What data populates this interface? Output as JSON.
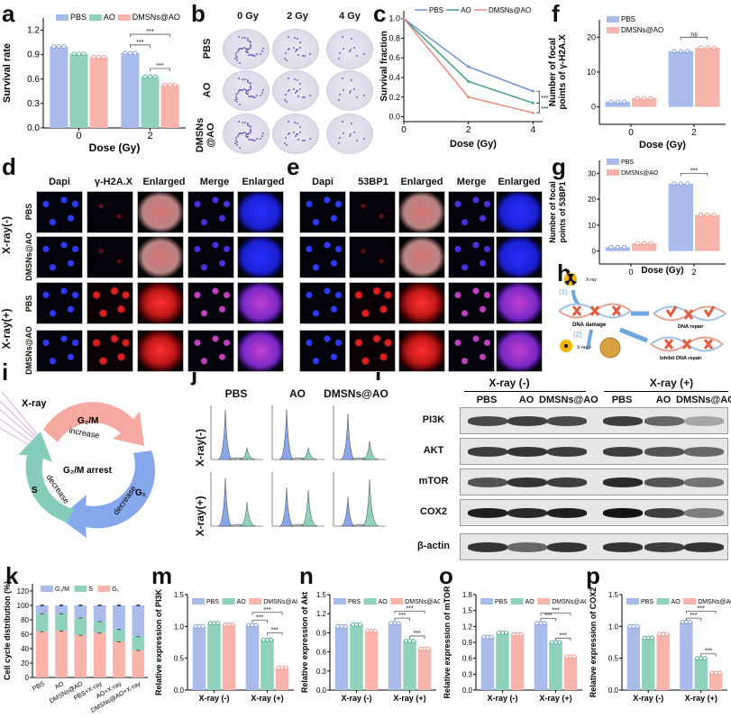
{
  "panel_labels": {
    "a": "a",
    "b": "b",
    "c": "c",
    "d": "d",
    "e": "e",
    "f": "f",
    "g": "g",
    "h": "h",
    "i": "i",
    "j": "j",
    "k": "k",
    "l": "l",
    "m": "m",
    "n": "n",
    "o": "o",
    "p": "p"
  },
  "colors": {
    "PBS": "#a9bbea",
    "AO": "#8fd1bd",
    "DMSNs@AO": "#f8b3aa",
    "PBS_line": "#7090d8",
    "AO_line": "#3aa383",
    "DMSNs_line": "#ef8a7c"
  },
  "panel_b": {
    "columns": [
      "0 Gy",
      "2 Gy",
      "4 Gy"
    ],
    "rows": [
      "PBS",
      "AO",
      "DMSNs\n@AO"
    ]
  },
  "panel_d": {
    "columns": [
      "Dapi",
      "γ-H2A.X",
      "Enlarged",
      "Merge",
      "Enlarged"
    ],
    "rows": [
      "PBS",
      "DMSNs@AO",
      "PBS",
      "DMSNs@AO"
    ],
    "groups": [
      "X-ray(-)",
      "X-ray(+)"
    ]
  },
  "panel_e": {
    "columns": [
      "Dapi",
      "53BP1",
      "Enlarged",
      "Merge",
      "Enlarged"
    ]
  },
  "panel_h": {
    "xray1": "X-ray",
    "step1": "(1)",
    "damage": "DNA damage",
    "step2": "(2)",
    "xray2": "X-ray +",
    "repair": "DNA repair",
    "inhibit": "Inhibit DNA repair"
  },
  "panel_i": {
    "xray": "X-ray",
    "g2m": "G₂/M",
    "increase": "increase",
    "arrest": "G₂/M arrest",
    "s": "S",
    "decrease_s": "decrease",
    "decrease_g1": "decrease",
    "g1": "G₁"
  },
  "panel_j": {
    "columns": [
      "PBS",
      "AO",
      "DMSNs@AO"
    ],
    "rows": [
      "X-ray(-)",
      "X-ray(+)"
    ]
  },
  "panel_l": {
    "groups": [
      "X-ray (-)",
      "X-ray (+)"
    ],
    "lanes": [
      "PBS",
      "AO",
      "DMSNs@AO",
      "PBS",
      "AO",
      "DMSNs@AO"
    ],
    "blots": [
      {
        "name": "PI3K",
        "bands": [
          0.75,
          0.8,
          0.75,
          0.8,
          0.6,
          0.3
        ]
      },
      {
        "name": "AKT",
        "bands": [
          0.8,
          0.85,
          0.8,
          0.8,
          0.7,
          0.6
        ]
      },
      {
        "name": "mTOR",
        "bands": [
          0.7,
          0.85,
          0.8,
          0.9,
          0.7,
          0.55
        ]
      },
      {
        "name": "COX2",
        "bands": [
          0.95,
          0.9,
          0.95,
          1.0,
          0.8,
          0.5
        ]
      },
      {
        "name": "β-actin",
        "bands": [
          0.85,
          0.6,
          0.85,
          0.85,
          0.8,
          0.85
        ]
      }
    ]
  },
  "chart_data": [
    {
      "id": "a",
      "type": "bar",
      "title": "",
      "xlabel": "Dose (Gy)",
      "ylabel": [
        "Survival rate"
      ],
      "categories": [
        "0",
        "2"
      ],
      "ylim": [
        0,
        1.35
      ],
      "yticks": [
        0,
        0.3,
        0.6,
        0.9,
        1.2
      ],
      "tick_decimals": 1,
      "series": [
        {
          "name": "PBS",
          "values": [
            1.0,
            0.92
          ]
        },
        {
          "name": "AO",
          "values": [
            0.91,
            0.63
          ]
        },
        {
          "name": "DMSNs@AO",
          "values": [
            0.87,
            0.53
          ]
        }
      ],
      "significance": [
        {
          "group": 1,
          "from": 0,
          "to": 1,
          "y": 1.02,
          "label": "***"
        },
        {
          "group": 1,
          "from": 0,
          "to": 2,
          "y": 1.15,
          "label": "***"
        },
        {
          "group": 1,
          "from": 1,
          "to": 2,
          "y": 0.73,
          "label": "***"
        }
      ]
    },
    {
      "id": "c",
      "type": "line",
      "xlabel": "Dose (Gy)",
      "ylabel": [
        "Survival fraction"
      ],
      "x": [
        0,
        2,
        4
      ],
      "xlim": [
        0,
        4.3
      ],
      "xticks": [
        0,
        2,
        4
      ],
      "ylim": [
        -0.05,
        1.08
      ],
      "yticks": [
        0,
        0.2,
        0.4,
        0.6,
        0.8,
        1.0
      ],
      "tick_decimals": 1,
      "series": [
        {
          "name": "PBS",
          "values": [
            1.0,
            0.51,
            0.26
          ]
        },
        {
          "name": "AO",
          "values": [
            1.0,
            0.36,
            0.14
          ]
        },
        {
          "name": "DMSNs@AO",
          "values": [
            1.0,
            0.2,
            0.04
          ]
        }
      ],
      "significance": [
        {
          "from": 0,
          "to": 1,
          "label": "***"
        },
        {
          "from": 1,
          "to": 2,
          "label": "***"
        }
      ]
    },
    {
      "id": "f",
      "type": "bar",
      "xlabel": "Dose (Gy)",
      "ylabel": [
        "Number of focal",
        "points of γ-H2A.X"
      ],
      "categories": [
        "0",
        "2"
      ],
      "ylim": [
        -5,
        25
      ],
      "yticks": [
        0,
        10,
        20
      ],
      "tick_decimals": 0,
      "series": [
        {
          "name": "PBS",
          "values": [
            1.5,
            16
          ]
        },
        {
          "name": "DMSNs@AO",
          "values": [
            2.5,
            17
          ]
        }
      ],
      "significance": [
        {
          "group": 1,
          "from": 0,
          "to": 1,
          "y": 20,
          "label": "ns"
        }
      ]
    },
    {
      "id": "g",
      "type": "bar",
      "xlabel": "Dose (Gy)",
      "ylabel": [
        "Number of focal",
        "points of 53BP1"
      ],
      "categories": [
        "0",
        "2"
      ],
      "ylim": [
        -5,
        35
      ],
      "yticks": [
        0,
        10,
        20,
        30
      ],
      "tick_decimals": 0,
      "series": [
        {
          "name": "PBS",
          "values": [
            1.5,
            26
          ]
        },
        {
          "name": "DMSNs@AO",
          "values": [
            3,
            14
          ]
        }
      ],
      "significance": [
        {
          "group": 1,
          "from": 0,
          "to": 1,
          "y": 30,
          "label": "***"
        }
      ]
    },
    {
      "id": "k",
      "type": "stacked-bar",
      "xlabel": "",
      "ylabel": [
        "Cell cycle distribution (%)"
      ],
      "categories": [
        "PBS",
        "AO",
        "DMSNs@AO",
        "PBS+X-ray",
        "AO+X-ray",
        "DMSNs@AO+X-ray"
      ],
      "ylim": [
        0,
        130
      ],
      "yticks": [
        0,
        20,
        40,
        60,
        80,
        100,
        120
      ],
      "tick_decimals": 0,
      "series": [
        {
          "name": "G₁",
          "values": [
            64,
            65,
            59,
            62,
            50,
            38
          ],
          "color": "#f8b3aa"
        },
        {
          "name": "S",
          "values": [
            25,
            24,
            24,
            16,
            17,
            19
          ],
          "color": "#8fd1bd"
        },
        {
          "name": "G₂/M",
          "values": [
            11,
            11,
            17,
            22,
            33,
            43
          ],
          "color": "#a9bbea"
        }
      ],
      "legend_order": [
        2,
        1,
        0
      ]
    },
    {
      "id": "m",
      "type": "bar",
      "xlabel": "",
      "ylabel": [
        "Relative expression of PI3K"
      ],
      "categories": [
        "X-ray (-)",
        "X-ray (+)"
      ],
      "ylim": [
        0,
        1.5
      ],
      "yticks": [
        0,
        0.5,
        1.0,
        1.5
      ],
      "tick_decimals": 1,
      "series": [
        {
          "name": "PBS",
          "values": [
            1.0,
            1.02
          ]
        },
        {
          "name": "AO",
          "values": [
            1.05,
            0.79
          ]
        },
        {
          "name": "DMSNs@AO",
          "values": [
            1.03,
            0.35
          ]
        }
      ],
      "significance": [
        {
          "group": 1,
          "from": 0,
          "to": 1,
          "y": 1.1,
          "label": "***"
        },
        {
          "group": 1,
          "from": 0,
          "to": 2,
          "y": 1.22,
          "label": "***"
        },
        {
          "group": 1,
          "from": 1,
          "to": 2,
          "y": 0.9,
          "label": "***"
        }
      ]
    },
    {
      "id": "n",
      "type": "bar",
      "xlabel": "",
      "ylabel": [
        "Relative expression of Akt"
      ],
      "categories": [
        "X-ray (-)",
        "X-ray (+)"
      ],
      "ylim": [
        0,
        1.5
      ],
      "yticks": [
        0,
        0.3,
        0.6,
        0.9,
        1.2,
        1.5
      ],
      "tick_decimals": 1,
      "series": [
        {
          "name": "PBS",
          "values": [
            1.0,
            1.05
          ]
        },
        {
          "name": "AO",
          "values": [
            1.03,
            0.77
          ]
        },
        {
          "name": "DMSNs@AO",
          "values": [
            0.93,
            0.65
          ]
        }
      ],
      "significance": [
        {
          "group": 1,
          "from": 0,
          "to": 1,
          "y": 1.13,
          "label": "***"
        },
        {
          "group": 1,
          "from": 0,
          "to": 2,
          "y": 1.24,
          "label": "***"
        },
        {
          "group": 1,
          "from": 1,
          "to": 2,
          "y": 0.85,
          "label": "***"
        }
      ]
    },
    {
      "id": "o",
      "type": "bar",
      "xlabel": "",
      "ylabel": [
        "Relative expression of mTOR"
      ],
      "categories": [
        "X-ray (-)",
        "X-ray (+)"
      ],
      "ylim": [
        0,
        1.8
      ],
      "yticks": [
        0,
        0.3,
        0.6,
        0.9,
        1.2,
        1.5,
        1.8
      ],
      "tick_decimals": 1,
      "series": [
        {
          "name": "PBS",
          "values": [
            1.0,
            1.26
          ]
        },
        {
          "name": "AO",
          "values": [
            1.08,
            0.9
          ]
        },
        {
          "name": "DMSNs@AO",
          "values": [
            1.05,
            0.63
          ]
        }
      ],
      "significance": [
        {
          "group": 1,
          "from": 0,
          "to": 1,
          "y": 1.35,
          "label": "***"
        },
        {
          "group": 1,
          "from": 0,
          "to": 2,
          "y": 1.45,
          "label": "***"
        },
        {
          "group": 1,
          "from": 1,
          "to": 2,
          "y": 0.98,
          "label": "***"
        }
      ]
    },
    {
      "id": "p",
      "type": "bar",
      "xlabel": "",
      "ylabel": [
        "Relative expression of COX2"
      ],
      "categories": [
        "X-ray (-)",
        "X-ray (+)"
      ],
      "ylim": [
        0,
        1.5
      ],
      "yticks": [
        0,
        0.5,
        1.0,
        1.5
      ],
      "tick_decimals": 1,
      "series": [
        {
          "name": "PBS",
          "values": [
            1.0,
            1.07
          ]
        },
        {
          "name": "AO",
          "values": [
            0.82,
            0.5
          ]
        },
        {
          "name": "DMSNs@AO",
          "values": [
            0.88,
            0.27
          ]
        }
      ],
      "significance": [
        {
          "group": 1,
          "from": 0,
          "to": 1,
          "y": 1.13,
          "label": "***"
        },
        {
          "group": 1,
          "from": 0,
          "to": 2,
          "y": 1.24,
          "label": "***"
        },
        {
          "group": 1,
          "from": 1,
          "to": 2,
          "y": 0.57,
          "label": "***"
        }
      ]
    }
  ]
}
